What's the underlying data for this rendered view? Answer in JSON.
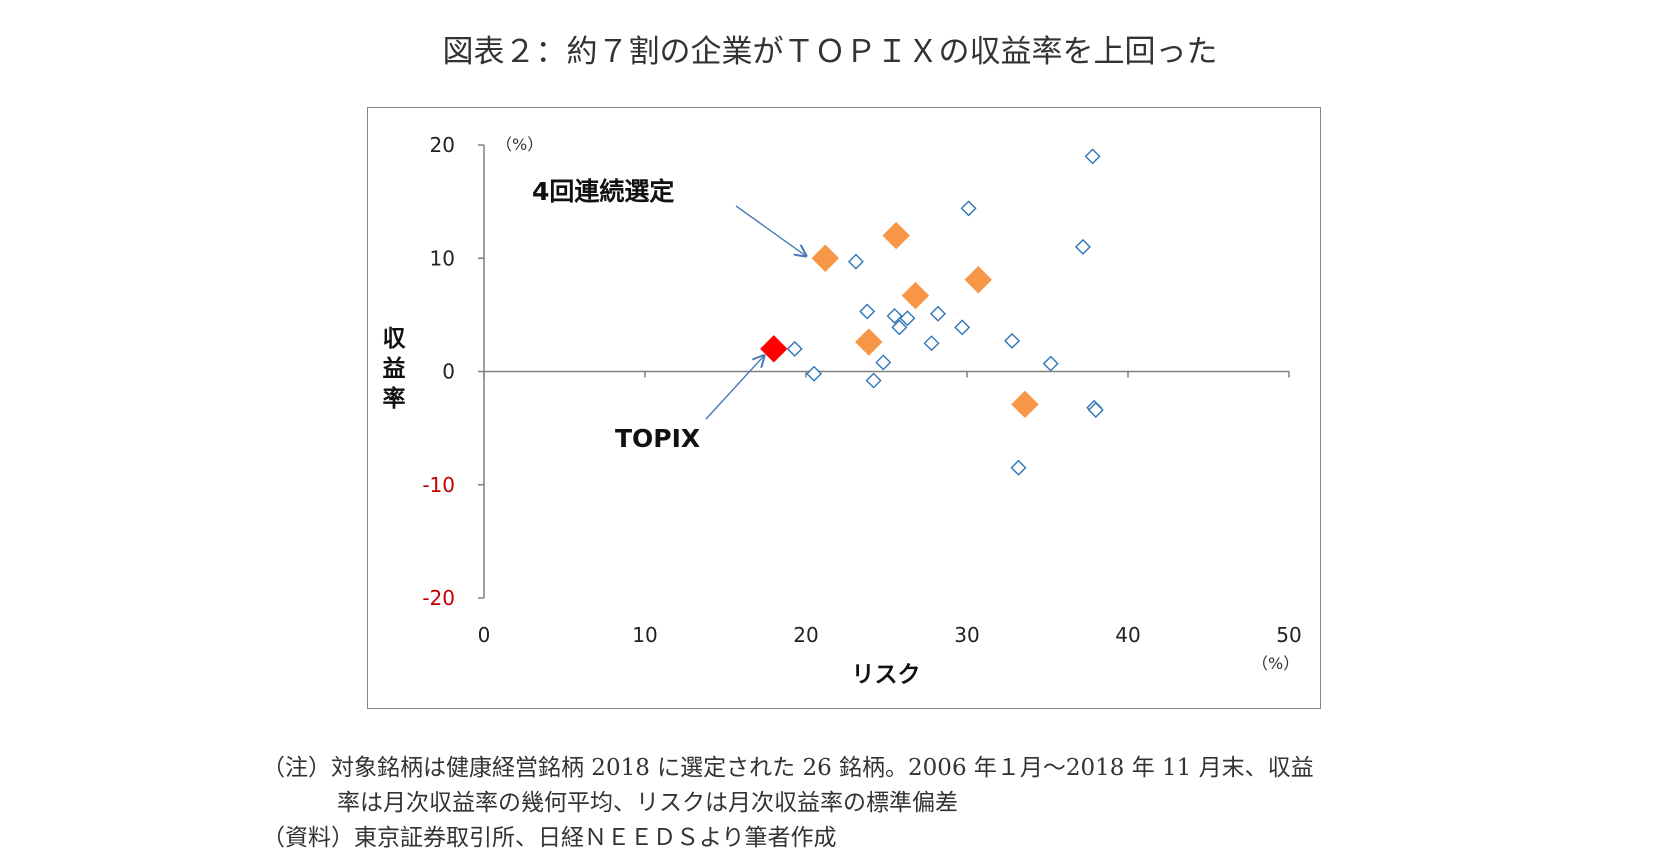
{
  "title": "図表２：約７割の企業がＴＯＰＩＸの収益率を上回った",
  "chart_data": {
    "type": "scatter",
    "xlabel": "リスク",
    "ylabel": "収益率",
    "x_unit": "（%）",
    "y_unit": "（%）",
    "xlim": [
      0,
      50
    ],
    "ylim": [
      -20,
      20
    ],
    "x_ticks": [
      "0",
      "10",
      "20",
      "30",
      "40",
      "50"
    ],
    "y_ticks": [
      "20",
      "10",
      "0",
      "-10",
      "-20"
    ],
    "grid": false,
    "legend": "none",
    "series": [
      {
        "style": "open-diamond",
        "color": "#2e75b6",
        "points": [
          {
            "x": 19.3,
            "y": 2.0
          },
          {
            "x": 20.5,
            "y": -0.2
          },
          {
            "x": 23.1,
            "y": 9.7
          },
          {
            "x": 23.8,
            "y": 5.3
          },
          {
            "x": 24.2,
            "y": -0.8
          },
          {
            "x": 24.8,
            "y": 0.8
          },
          {
            "x": 25.5,
            "y": 4.9
          },
          {
            "x": 25.8,
            "y": 3.9
          },
          {
            "x": 26.3,
            "y": 4.7
          },
          {
            "x": 27.8,
            "y": 2.5
          },
          {
            "x": 28.2,
            "y": 5.1
          },
          {
            "x": 29.7,
            "y": 3.9
          },
          {
            "x": 30.1,
            "y": 14.4
          },
          {
            "x": 32.8,
            "y": 2.7
          },
          {
            "x": 33.2,
            "y": -8.5
          },
          {
            "x": 35.2,
            "y": 0.7
          },
          {
            "x": 37.2,
            "y": 11.0
          },
          {
            "x": 37.8,
            "y": 19.0
          },
          {
            "x": 37.9,
            "y": -3.2
          },
          {
            "x": 38.0,
            "y": -3.4
          }
        ]
      },
      {
        "style": "filled-diamond",
        "color": "#f79646",
        "points": [
          {
            "x": 21.2,
            "y": 10.0
          },
          {
            "x": 25.6,
            "y": 12.0
          },
          {
            "x": 23.9,
            "y": 2.6
          },
          {
            "x": 26.8,
            "y": 6.7
          },
          {
            "x": 30.7,
            "y": 8.1
          },
          {
            "x": 33.6,
            "y": -2.9
          }
        ]
      },
      {
        "style": "filled-diamond",
        "color": "#ff0000",
        "points": [
          {
            "x": 18.0,
            "y": 2.0
          }
        ]
      }
    ],
    "annotations": [
      {
        "text": "4回連続選定",
        "arrow_to": {
          "x": 20.0,
          "y": 10.2
        }
      },
      {
        "text": "TOPIX",
        "arrow_to": {
          "x": 17.4,
          "y": 1.4
        }
      }
    ]
  },
  "notes": [
    "（注）対象銘柄は健康経営銘柄 2018 に選定された 26 銘柄。2006 年１月～2018 年 11 月末、収益",
    "率は月次収益率の幾何平均、リスクは月次収益率の標準偏差",
    "（資料）東京証券取引所、日経ＮＥＥＤＳより筆者作成"
  ]
}
